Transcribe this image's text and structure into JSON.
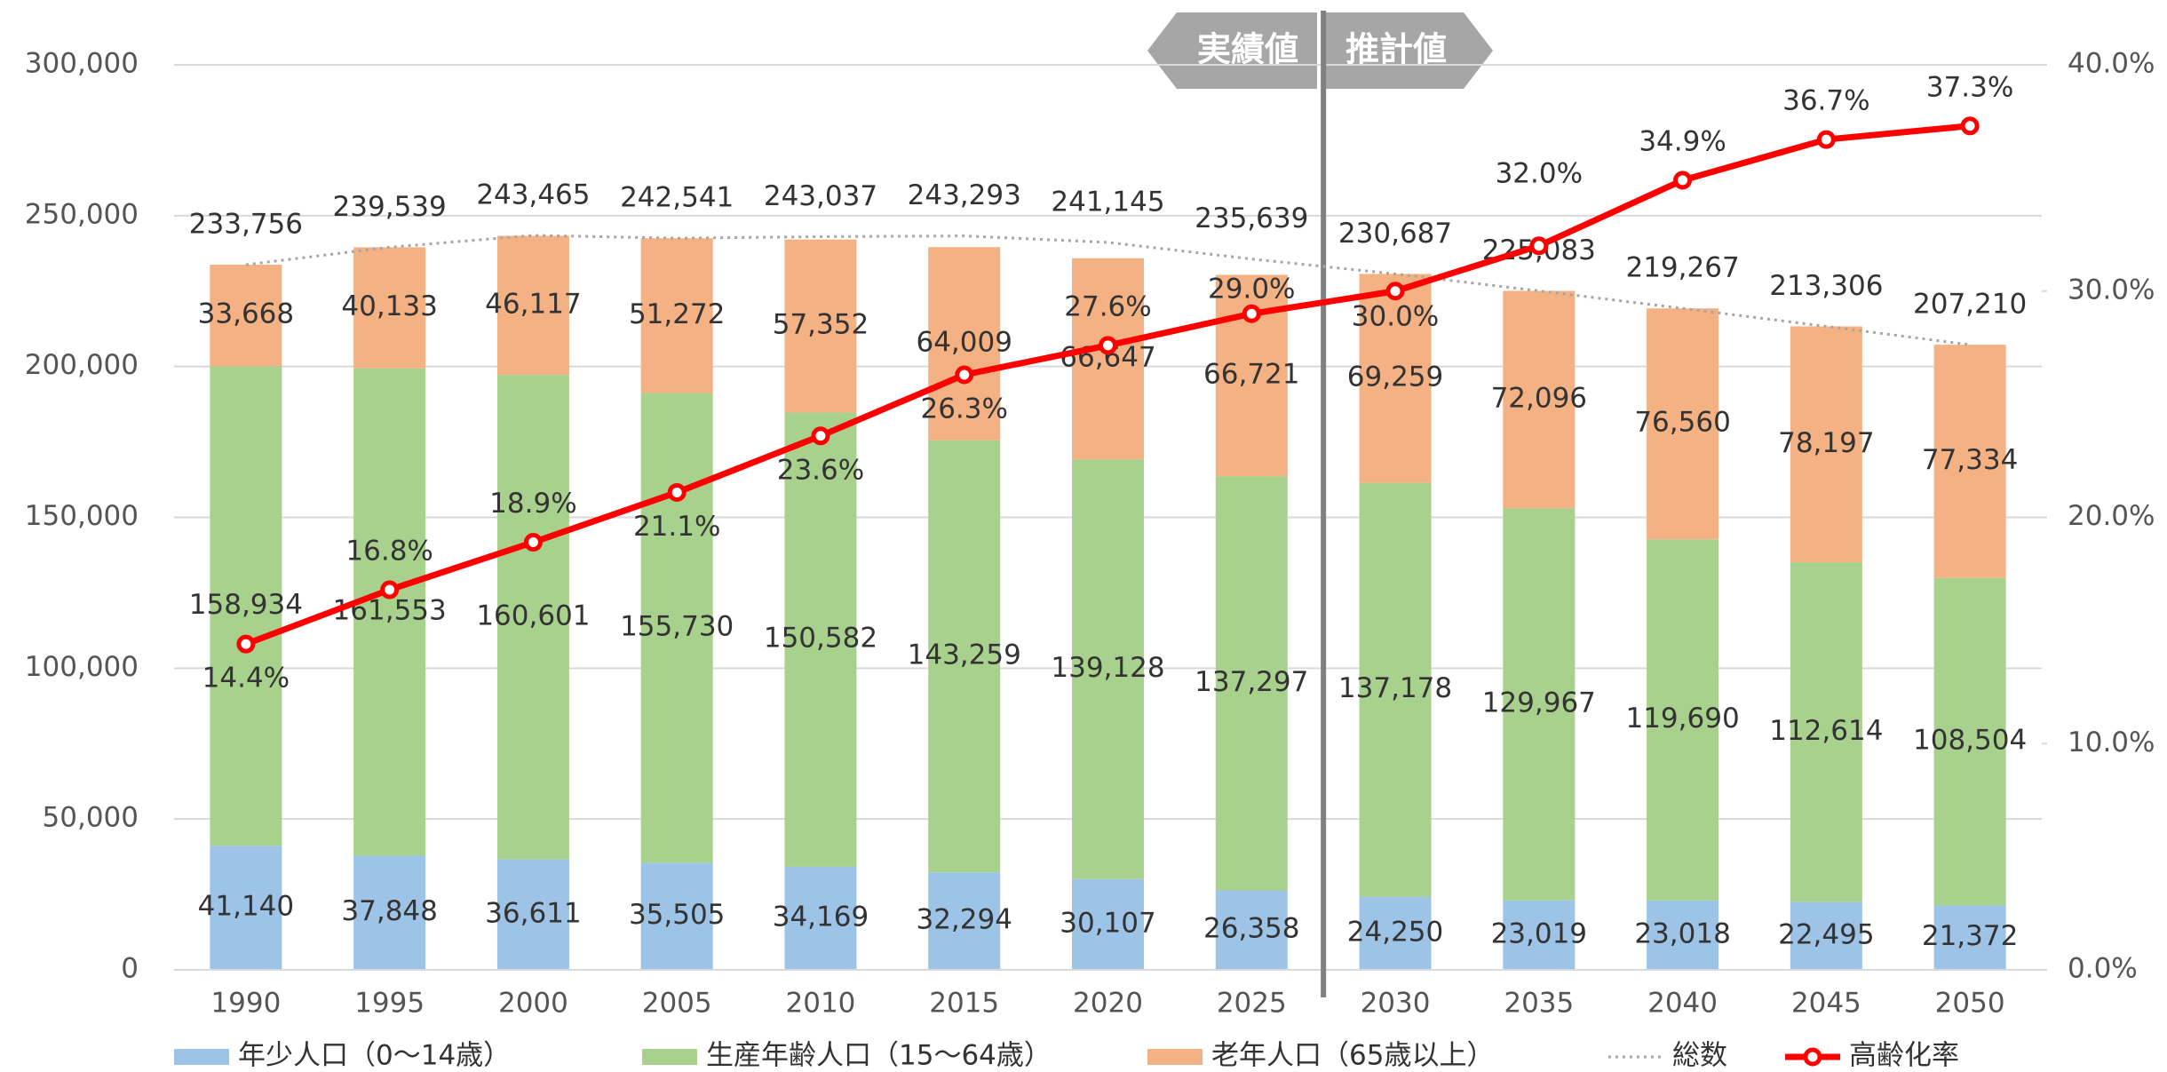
{
  "chart_data": {
    "type": "bar",
    "stacked": true,
    "categories": [
      "1990",
      "1995",
      "2000",
      "2005",
      "2010",
      "2015",
      "2020",
      "2025",
      "2030",
      "2035",
      "2040",
      "2045",
      "2050"
    ],
    "series": [
      {
        "name": "年少人口（0～14歳）",
        "color": "#9dc3e6",
        "values": [
          41140,
          37848,
          36611,
          35505,
          34169,
          32294,
          30107,
          26358,
          24250,
          23019,
          23018,
          22495,
          21372
        ],
        "value_labels": [
          "41,140",
          "37,848",
          "36,611",
          "35,505",
          "34,169",
          "32,294",
          "30,107",
          "26,358",
          "24,250",
          "23,019",
          "23,018",
          "22,495",
          "21,372"
        ]
      },
      {
        "name": "生産年齢人口（15～64歳）",
        "color": "#a9d18e",
        "values": [
          158934,
          161553,
          160601,
          155730,
          150582,
          143259,
          139128,
          137297,
          137178,
          129967,
          119690,
          112614,
          108504
        ],
        "value_labels": [
          "158,934",
          "161,553",
          "160,601",
          "155,730",
          "150,582",
          "143,259",
          "139,128",
          "137,297",
          "137,178",
          "129,967",
          "119,690",
          "112,614",
          "108,504"
        ]
      },
      {
        "name": "老年人口（65歳以上）",
        "color": "#f4b183",
        "values": [
          33668,
          40133,
          46117,
          51272,
          57352,
          64009,
          66647,
          66721,
          69259,
          72096,
          76560,
          78197,
          77334
        ],
        "value_labels": [
          "33,668",
          "40,133",
          "46,117",
          "51,272",
          "57,352",
          "64,009",
          "66,647",
          "66,721",
          "69,259",
          "72,096",
          "76,560",
          "78,197",
          "77,334"
        ]
      },
      {
        "name": "総数",
        "type": "line",
        "line_style": "dotted",
        "color": "#a6a6a6",
        "values": [
          233756,
          239539,
          243465,
          242541,
          243037,
          243293,
          241145,
          235639,
          230687,
          225083,
          219267,
          213306,
          207210
        ],
        "value_labels": [
          "233,756",
          "239,539",
          "243,465",
          "242,541",
          "243,037",
          "243,293",
          "241,145",
          "235,639",
          "230,687",
          "225,083",
          "219,267",
          "213,306",
          "207,210"
        ]
      },
      {
        "name": "高齢化率",
        "type": "line",
        "axis": "y2",
        "color": "#ff0000",
        "markers": true,
        "values": [
          14.4,
          16.8,
          18.9,
          21.1,
          23.6,
          26.3,
          27.6,
          29.0,
          30.0,
          32.0,
          34.9,
          36.7,
          37.3
        ],
        "value_labels": [
          "14.4%",
          "16.8%",
          "18.9%",
          "21.1%",
          "23.6%",
          "26.3%",
          "27.6%",
          "29.0%",
          "30.0%",
          "32.0%",
          "34.9%",
          "36.7%",
          "37.3%"
        ]
      }
    ],
    "ylim": [
      0,
      300000
    ],
    "yticks": [
      0,
      {
        "value": 50000,
        "label": "50,000"
      },
      {
        "value": 100000,
        "label": "100,000"
      },
      {
        "value": 150000,
        "label": "150,000"
      },
      {
        "value": 200000,
        "label": "200,000"
      },
      {
        "value": 250000,
        "label": "250,000"
      },
      {
        "value": 300000,
        "label": "300,000"
      }
    ],
    "y2lim": [
      0,
      40
    ],
    "y2ticks": [
      {
        "value": 0,
        "label": "0.0%"
      },
      {
        "value": 10,
        "label": "10.0%"
      },
      {
        "value": 20,
        "label": "20.0%"
      },
      {
        "value": 30,
        "label": "30.0%"
      },
      {
        "value": 40,
        "label": "40.0%"
      }
    ],
    "grid": true,
    "legend": "bottom",
    "annotations": [
      "実績値",
      "推計値"
    ]
  }
}
